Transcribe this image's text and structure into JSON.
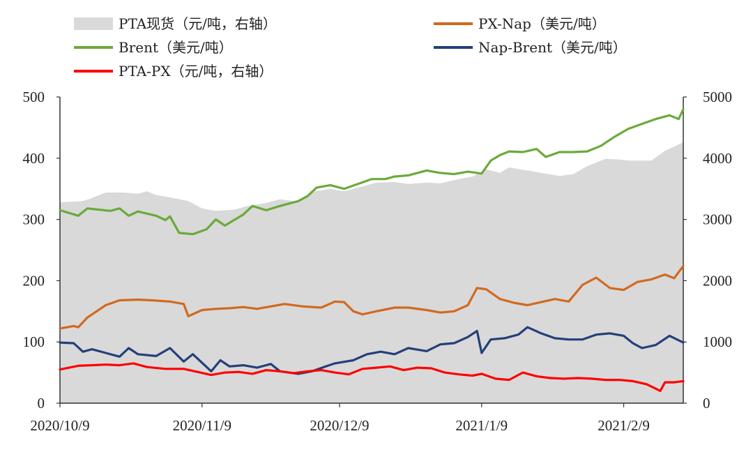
{
  "chart_data": {
    "type": "line",
    "legend": [
      {
        "key": "pta_spot",
        "label": "PTA现货（元/吨，右轴）",
        "color": "#d9d9d9",
        "kind": "area"
      },
      {
        "key": "px_nap",
        "label": "PX-Nap（美元/吨）",
        "color": "#d2691e",
        "kind": "line"
      },
      {
        "key": "brent",
        "label": "Brent（美元/吨）",
        "color": "#6aaa3a",
        "kind": "line"
      },
      {
        "key": "nap_brent",
        "label": "Nap-Brent（美元/吨）",
        "color": "#243f7a",
        "kind": "line"
      },
      {
        "key": "pta_px",
        "label": "PTA-PX（元/吨，右轴）",
        "color": "#ff0000",
        "kind": "line"
      }
    ],
    "x_axis": {
      "start": "2020-10-09",
      "end": "2021-02-22",
      "tick_dates": [
        "2020-10-09",
        "2020-11-09",
        "2020-12-09",
        "2021-01-09",
        "2021-02-09"
      ],
      "tick_labels": [
        "2020/10/9",
        "2020/11/9",
        "2020/12/9",
        "2021/1/9",
        "2021/2/9"
      ]
    },
    "y_left": {
      "min": 0,
      "max": 500,
      "ticks": [
        0,
        100,
        200,
        300,
        400,
        500
      ],
      "tick_labels": [
        "0",
        "100",
        "200",
        "300",
        "400",
        "500"
      ]
    },
    "y_right": {
      "min": 0,
      "max": 5000,
      "ticks": [
        0,
        1000,
        2000,
        3000,
        4000,
        5000
      ],
      "tick_labels": [
        "0",
        "1000",
        "2000",
        "3000",
        "4000",
        "5000"
      ]
    },
    "series": [
      {
        "key": "pta_spot",
        "axis": "right",
        "points": [
          [
            "2020-10-09",
            3280
          ],
          [
            "2020-10-14",
            3300
          ],
          [
            "2020-10-16",
            3350
          ],
          [
            "2020-10-19",
            3440
          ],
          [
            "2020-10-23",
            3440
          ],
          [
            "2020-10-26",
            3420
          ],
          [
            "2020-10-28",
            3460
          ],
          [
            "2020-10-30",
            3400
          ],
          [
            "2020-11-02",
            3360
          ],
          [
            "2020-11-06",
            3300
          ],
          [
            "2020-11-09",
            3180
          ],
          [
            "2020-11-12",
            3140
          ],
          [
            "2020-11-16",
            3160
          ],
          [
            "2020-11-19",
            3220
          ],
          [
            "2020-11-23",
            3270
          ],
          [
            "2020-11-26",
            3330
          ],
          [
            "2020-11-30",
            3290
          ],
          [
            "2020-12-03",
            3450
          ],
          [
            "2020-12-07",
            3500
          ],
          [
            "2020-12-10",
            3460
          ],
          [
            "2020-12-14",
            3540
          ],
          [
            "2020-12-17",
            3600
          ],
          [
            "2020-12-21",
            3610
          ],
          [
            "2020-12-24",
            3580
          ],
          [
            "2020-12-28",
            3600
          ],
          [
            "2020-12-31",
            3590
          ],
          [
            "2021-01-04",
            3660
          ],
          [
            "2021-01-07",
            3700
          ],
          [
            "2021-01-10",
            3820
          ],
          [
            "2021-01-13",
            3760
          ],
          [
            "2021-01-15",
            3850
          ],
          [
            "2021-01-19",
            3800
          ],
          [
            "2021-01-22",
            3760
          ],
          [
            "2021-01-26",
            3710
          ],
          [
            "2021-01-29",
            3740
          ],
          [
            "2021-02-01",
            3870
          ],
          [
            "2021-02-05",
            3990
          ],
          [
            "2021-02-08",
            3980
          ],
          [
            "2021-02-10",
            3960
          ],
          [
            "2021-02-15",
            3960
          ],
          [
            "2021-02-18",
            4120
          ],
          [
            "2021-02-22",
            4260
          ]
        ]
      },
      {
        "key": "px_nap",
        "axis": "left",
        "points": [
          [
            "2020-10-09",
            122
          ],
          [
            "2020-10-12",
            126
          ],
          [
            "2020-10-13",
            124
          ],
          [
            "2020-10-15",
            140
          ],
          [
            "2020-10-16",
            145
          ],
          [
            "2020-10-19",
            160
          ],
          [
            "2020-10-22",
            168
          ],
          [
            "2020-10-26",
            169
          ],
          [
            "2020-10-29",
            168
          ],
          [
            "2020-11-02",
            166
          ],
          [
            "2020-11-05",
            162
          ],
          [
            "2020-11-06",
            142
          ],
          [
            "2020-11-09",
            152
          ],
          [
            "2020-11-12",
            154
          ],
          [
            "2020-11-15",
            155
          ],
          [
            "2020-11-18",
            157
          ],
          [
            "2020-11-21",
            154
          ],
          [
            "2020-11-24",
            158
          ],
          [
            "2020-11-27",
            162
          ],
          [
            "2020-12-01",
            158
          ],
          [
            "2020-12-05",
            156
          ],
          [
            "2020-12-08",
            166
          ],
          [
            "2020-12-10",
            165
          ],
          [
            "2020-12-12",
            150
          ],
          [
            "2020-12-14",
            145
          ],
          [
            "2020-12-17",
            150
          ],
          [
            "2020-12-21",
            156
          ],
          [
            "2020-12-24",
            156
          ],
          [
            "2020-12-28",
            152
          ],
          [
            "2020-12-31",
            148
          ],
          [
            "2021-01-03",
            150
          ],
          [
            "2021-01-06",
            160
          ],
          [
            "2021-01-08",
            188
          ],
          [
            "2021-01-10",
            186
          ],
          [
            "2021-01-13",
            170
          ],
          [
            "2021-01-16",
            164
          ],
          [
            "2021-01-19",
            160
          ],
          [
            "2021-01-22",
            165
          ],
          [
            "2021-01-25",
            170
          ],
          [
            "2021-01-28",
            166
          ],
          [
            "2021-01-31",
            193
          ],
          [
            "2021-02-03",
            205
          ],
          [
            "2021-02-06",
            188
          ],
          [
            "2021-02-09",
            185
          ],
          [
            "2021-02-12",
            198
          ],
          [
            "2021-02-15",
            202
          ],
          [
            "2021-02-18",
            210
          ],
          [
            "2021-02-20",
            204
          ],
          [
            "2021-02-22",
            224
          ]
        ]
      },
      {
        "key": "brent",
        "axis": "left",
        "points": [
          [
            "2020-10-09",
            315
          ],
          [
            "2020-10-13",
            306
          ],
          [
            "2020-10-15",
            318
          ],
          [
            "2020-10-20",
            314
          ],
          [
            "2020-10-22",
            318
          ],
          [
            "2020-10-24",
            306
          ],
          [
            "2020-10-26",
            313
          ],
          [
            "2020-10-30",
            306
          ],
          [
            "2020-11-01",
            299
          ],
          [
            "2020-11-02",
            305
          ],
          [
            "2020-11-04",
            278
          ],
          [
            "2020-11-07",
            276
          ],
          [
            "2020-11-10",
            284
          ],
          [
            "2020-11-12",
            300
          ],
          [
            "2020-11-14",
            290
          ],
          [
            "2020-11-18",
            308
          ],
          [
            "2020-11-20",
            322
          ],
          [
            "2020-11-23",
            315
          ],
          [
            "2020-11-26",
            322
          ],
          [
            "2020-11-30",
            330
          ],
          [
            "2020-12-02",
            338
          ],
          [
            "2020-12-04",
            352
          ],
          [
            "2020-12-07",
            356
          ],
          [
            "2020-12-10",
            350
          ],
          [
            "2020-12-13",
            358
          ],
          [
            "2020-12-16",
            366
          ],
          [
            "2020-12-19",
            366
          ],
          [
            "2020-12-21",
            370
          ],
          [
            "2020-12-24",
            372
          ],
          [
            "2020-12-28",
            380
          ],
          [
            "2020-12-31",
            376
          ],
          [
            "2021-01-03",
            374
          ],
          [
            "2021-01-06",
            378
          ],
          [
            "2021-01-09",
            375
          ],
          [
            "2021-01-11",
            396
          ],
          [
            "2021-01-13",
            405
          ],
          [
            "2021-01-15",
            411
          ],
          [
            "2021-01-18",
            410
          ],
          [
            "2021-01-21",
            415
          ],
          [
            "2021-01-23",
            402
          ],
          [
            "2021-01-26",
            410
          ],
          [
            "2021-01-29",
            410
          ],
          [
            "2021-02-01",
            411
          ],
          [
            "2021-02-04",
            420
          ],
          [
            "2021-02-07",
            435
          ],
          [
            "2021-02-10",
            448
          ],
          [
            "2021-02-13",
            456
          ],
          [
            "2021-02-16",
            464
          ],
          [
            "2021-02-19",
            470
          ],
          [
            "2021-02-21",
            464
          ],
          [
            "2021-02-22",
            480
          ]
        ]
      },
      {
        "key": "nap_brent",
        "axis": "left",
        "points": [
          [
            "2020-10-09",
            99
          ],
          [
            "2020-10-12",
            98
          ],
          [
            "2020-10-14",
            84
          ],
          [
            "2020-10-16",
            88
          ],
          [
            "2020-10-19",
            82
          ],
          [
            "2020-10-22",
            76
          ],
          [
            "2020-10-24",
            90
          ],
          [
            "2020-10-26",
            80
          ],
          [
            "2020-10-30",
            77
          ],
          [
            "2020-11-02",
            90
          ],
          [
            "2020-11-05",
            68
          ],
          [
            "2020-11-07",
            80
          ],
          [
            "2020-11-09",
            66
          ],
          [
            "2020-11-11",
            52
          ],
          [
            "2020-11-13",
            70
          ],
          [
            "2020-11-15",
            60
          ],
          [
            "2020-11-18",
            62
          ],
          [
            "2020-11-21",
            58
          ],
          [
            "2020-11-24",
            64
          ],
          [
            "2020-11-26",
            52
          ],
          [
            "2020-11-30",
            48
          ],
          [
            "2020-12-03",
            52
          ],
          [
            "2020-12-06",
            60
          ],
          [
            "2020-12-08",
            65
          ],
          [
            "2020-12-12",
            70
          ],
          [
            "2020-12-15",
            80
          ],
          [
            "2020-12-18",
            84
          ],
          [
            "2020-12-21",
            80
          ],
          [
            "2020-12-24",
            90
          ],
          [
            "2020-12-28",
            85
          ],
          [
            "2020-12-31",
            96
          ],
          [
            "2021-01-03",
            98
          ],
          [
            "2021-01-06",
            108
          ],
          [
            "2021-01-08",
            118
          ],
          [
            "2021-01-09",
            82
          ],
          [
            "2021-01-11",
            104
          ],
          [
            "2021-01-14",
            106
          ],
          [
            "2021-01-17",
            112
          ],
          [
            "2021-01-19",
            124
          ],
          [
            "2021-01-22",
            114
          ],
          [
            "2021-01-25",
            106
          ],
          [
            "2021-01-28",
            104
          ],
          [
            "2021-01-31",
            104
          ],
          [
            "2021-02-03",
            112
          ],
          [
            "2021-02-06",
            114
          ],
          [
            "2021-02-09",
            110
          ],
          [
            "2021-02-11",
            98
          ],
          [
            "2021-02-13",
            90
          ],
          [
            "2021-02-16",
            95
          ],
          [
            "2021-02-19",
            110
          ],
          [
            "2021-02-22",
            99
          ]
        ]
      },
      {
        "key": "pta_px",
        "axis": "right",
        "points": [
          [
            "2020-10-09",
            550
          ],
          [
            "2020-10-13",
            610
          ],
          [
            "2020-10-16",
            620
          ],
          [
            "2020-10-19",
            630
          ],
          [
            "2020-10-22",
            620
          ],
          [
            "2020-10-25",
            650
          ],
          [
            "2020-10-28",
            590
          ],
          [
            "2020-11-01",
            560
          ],
          [
            "2020-11-05",
            560
          ],
          [
            "2020-11-08",
            510
          ],
          [
            "2020-11-11",
            460
          ],
          [
            "2020-11-14",
            500
          ],
          [
            "2020-11-17",
            510
          ],
          [
            "2020-11-20",
            480
          ],
          [
            "2020-11-23",
            540
          ],
          [
            "2020-11-26",
            520
          ],
          [
            "2020-11-29",
            490
          ],
          [
            "2020-12-02",
            520
          ],
          [
            "2020-12-05",
            540
          ],
          [
            "2020-12-08",
            500
          ],
          [
            "2020-12-11",
            470
          ],
          [
            "2020-12-14",
            560
          ],
          [
            "2020-12-17",
            580
          ],
          [
            "2020-12-20",
            600
          ],
          [
            "2020-12-23",
            540
          ],
          [
            "2020-12-26",
            580
          ],
          [
            "2020-12-29",
            570
          ],
          [
            "2021-01-01",
            500
          ],
          [
            "2021-01-04",
            470
          ],
          [
            "2021-01-07",
            450
          ],
          [
            "2021-01-09",
            480
          ],
          [
            "2021-01-12",
            400
          ],
          [
            "2021-01-15",
            380
          ],
          [
            "2021-01-18",
            500
          ],
          [
            "2021-01-21",
            440
          ],
          [
            "2021-01-24",
            410
          ],
          [
            "2021-01-27",
            400
          ],
          [
            "2021-01-30",
            410
          ],
          [
            "2021-02-02",
            400
          ],
          [
            "2021-02-05",
            380
          ],
          [
            "2021-02-08",
            380
          ],
          [
            "2021-02-11",
            360
          ],
          [
            "2021-02-14",
            310
          ],
          [
            "2021-02-17",
            200
          ],
          [
            "2021-02-18",
            340
          ],
          [
            "2021-02-20",
            340
          ],
          [
            "2021-02-22",
            360
          ]
        ]
      }
    ]
  }
}
